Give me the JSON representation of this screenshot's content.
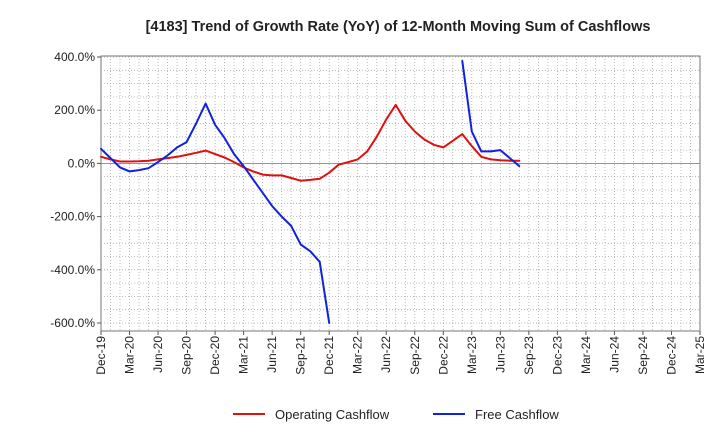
{
  "chart_data": {
    "type": "line",
    "title": "[4183]  Trend of Growth Rate (YoY) of 12-Month Moving Sum of Cashflows",
    "xlabel": "",
    "ylabel": "",
    "ylim": [
      -620,
      400
    ],
    "yticks": [
      400,
      200,
      0,
      -200,
      -400,
      -600
    ],
    "ytick_labels": [
      "400.0%",
      "200.0%",
      "0.0%",
      "-200.0%",
      "-400.0%",
      "-600.0%"
    ],
    "categories": [
      "Dec-19",
      "Mar-20",
      "Jun-20",
      "Sep-20",
      "Dec-20",
      "Mar-21",
      "Jun-21",
      "Sep-21",
      "Dec-21",
      "Mar-22",
      "Jun-22",
      "Sep-22",
      "Dec-22",
      "Mar-23",
      "Jun-23",
      "Sep-23",
      "Dec-23",
      "Mar-24",
      "Jun-24",
      "Sep-24",
      "Dec-24",
      "Mar-25"
    ],
    "grid": true,
    "legend_position": "bottom",
    "series": [
      {
        "name": "Operating Cashflow",
        "color": "#dd1111",
        "points": [
          [
            0,
            25
          ],
          [
            1,
            15
          ],
          [
            2,
            7
          ],
          [
            3,
            7
          ],
          [
            4,
            8
          ],
          [
            5,
            10
          ],
          [
            6,
            15
          ],
          [
            7,
            20
          ],
          [
            8,
            25
          ],
          [
            9,
            32
          ],
          [
            10,
            40
          ],
          [
            11,
            48
          ],
          [
            12,
            35
          ],
          [
            13,
            22
          ],
          [
            14,
            5
          ],
          [
            15,
            -15
          ],
          [
            16,
            -30
          ],
          [
            17,
            -42
          ],
          [
            18,
            -45
          ],
          [
            19,
            -45
          ],
          [
            20,
            -55
          ],
          [
            21,
            -65
          ],
          [
            22,
            -62
          ],
          [
            23,
            -58
          ],
          [
            24,
            -35
          ],
          [
            25,
            -5
          ],
          [
            26,
            5
          ],
          [
            27,
            15
          ],
          [
            28,
            45
          ],
          [
            29,
            100
          ],
          [
            30,
            165
          ],
          [
            31,
            220
          ],
          [
            32,
            160
          ],
          [
            33,
            120
          ],
          [
            34,
            90
          ],
          [
            35,
            70
          ],
          [
            36,
            60
          ],
          [
            37,
            85
          ],
          [
            38,
            110
          ],
          [
            39,
            65
          ],
          [
            40,
            25
          ],
          [
            41,
            15
          ],
          [
            42,
            12
          ],
          [
            43,
            10
          ],
          [
            44,
            10
          ]
        ]
      },
      {
        "name": "Free Cashflow",
        "color": "#1122dd",
        "points": [
          [
            0,
            55
          ],
          [
            1,
            20
          ],
          [
            2,
            -15
          ],
          [
            3,
            -30
          ],
          [
            4,
            -25
          ],
          [
            5,
            -18
          ],
          [
            6,
            5
          ],
          [
            7,
            30
          ],
          [
            8,
            60
          ],
          [
            9,
            80
          ],
          [
            10,
            150
          ],
          [
            11,
            225
          ],
          [
            12,
            145
          ],
          [
            13,
            95
          ],
          [
            14,
            35
          ],
          [
            15,
            -10
          ],
          [
            16,
            -60
          ],
          [
            17,
            -110
          ],
          [
            18,
            -160
          ],
          [
            19,
            -200
          ],
          [
            20,
            -235
          ],
          [
            21,
            -305
          ],
          [
            22,
            -330
          ],
          [
            23,
            -370
          ],
          [
            24,
            -600
          ],
          null,
          [
            38,
            385
          ],
          [
            39,
            120
          ],
          [
            40,
            45
          ],
          [
            41,
            45
          ],
          [
            42,
            50
          ],
          [
            43,
            20
          ],
          [
            44,
            -10
          ]
        ]
      }
    ]
  }
}
